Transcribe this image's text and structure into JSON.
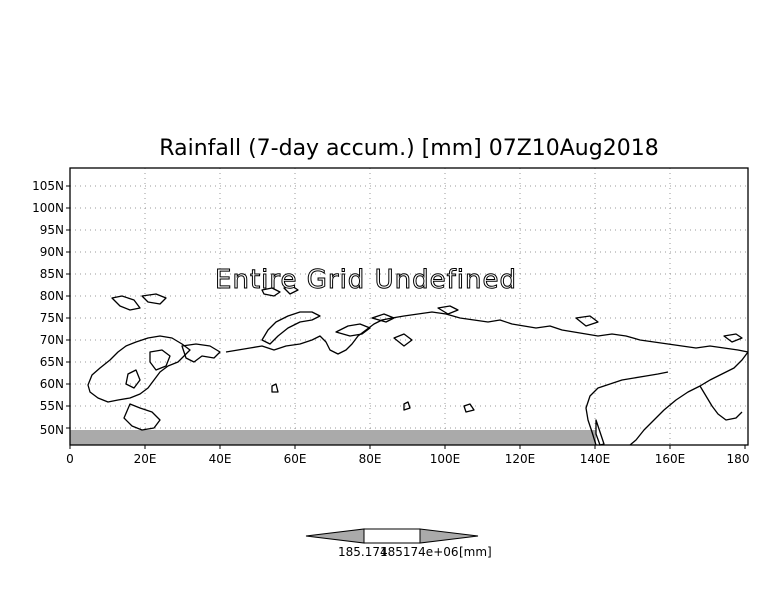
{
  "title": "Rainfall (7-day accum.) [mm] 07Z10Aug2018",
  "message": "Entire Grid Undefined",
  "lat_labels": [
    "105N",
    "100N",
    "95N",
    "90N",
    "85N",
    "80N",
    "75N",
    "70N",
    "65N",
    "60N",
    "55N",
    "50N"
  ],
  "lon_labels": [
    "0",
    "20E",
    "40E",
    "60E",
    "80E",
    "100E",
    "120E",
    "140E",
    "160E",
    "180"
  ],
  "colorbar": {
    "label_value": "185.174",
    "label_value2": "185174e+06",
    "label_unit": "[mm]"
  },
  "colors": {
    "masked_band": "#aaaaaa",
    "colorbar_arrow": "#aaaaaa",
    "colorbar_box": "#ffffff"
  }
}
